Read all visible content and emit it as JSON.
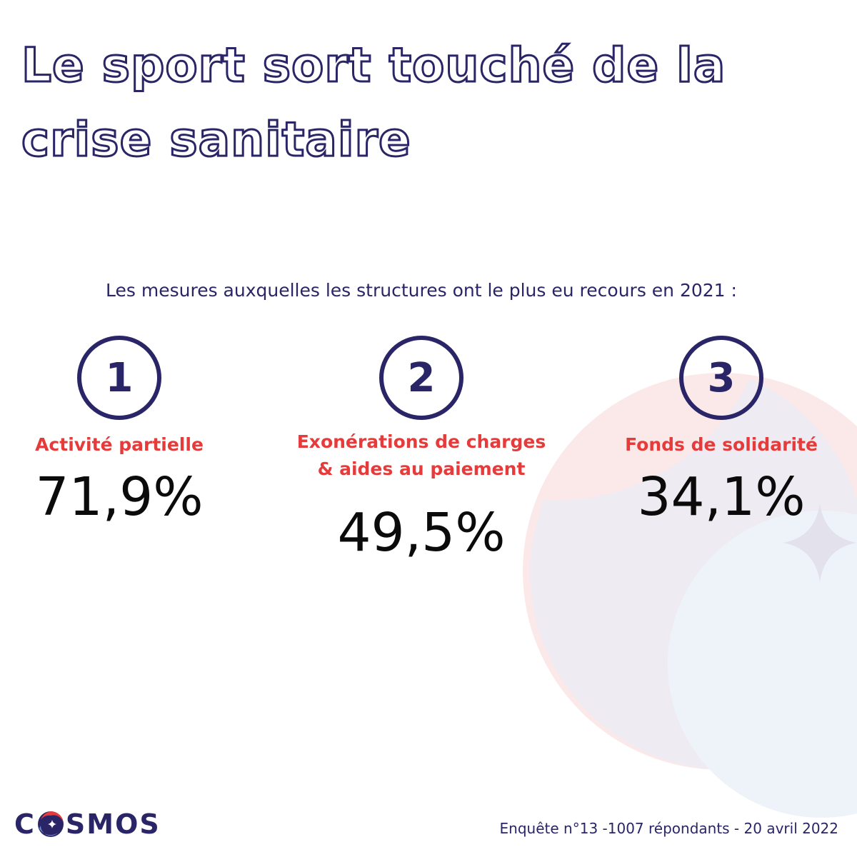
{
  "title": {
    "line1": "Le sport sort touché de la",
    "line2": "crise sanitaire"
  },
  "subtitle": "Les mesures auxquelles les structures ont le plus eu recours en 2021 :",
  "measures": [
    {
      "rank": "1",
      "label_line1": "Activité partielle",
      "value": "71,9%"
    },
    {
      "rank": "2",
      "label_line1": "Exonérations de charges",
      "label_line2": "& aides au paiement",
      "value": "49,5%"
    },
    {
      "rank": "3",
      "label_line1": "Fonds de solidarité",
      "value": "34,1%"
    }
  ],
  "logo": {
    "prefix": "C",
    "suffix": "SMOS"
  },
  "footer": "Enquête n°13 -1007 répondants - 20 avril 2022",
  "colors": {
    "navy": "#2a2566",
    "red": "#e63b3b",
    "value_text": "#0b0b0b",
    "background": "#ffffff"
  },
  "icons": {
    "background_art": "crescent-moon-star-icon",
    "logo_mark": "globe-star-icon"
  }
}
